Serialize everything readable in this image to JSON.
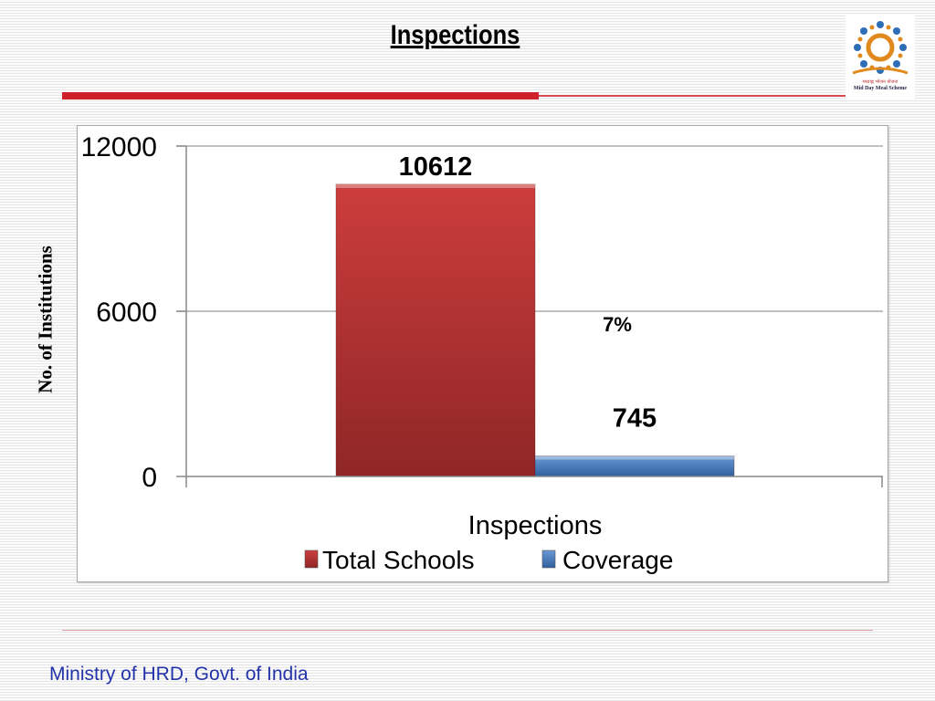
{
  "slide": {
    "title": "Inspections",
    "footer": "Ministry of HRD, Govt. of India",
    "logo": {
      "hindi": "मध्याह्न भोजन योजना",
      "english": "Mid Day Meal Scheme"
    }
  },
  "colors": {
    "total_schools": "#c0393a",
    "coverage": "#4a7fc1",
    "title_rule": "#d0202a",
    "footer_text": "#2233aa"
  },
  "chart_data": {
    "type": "bar",
    "title": "",
    "xlabel": "Inspections",
    "ylabel": "No. of Institutions",
    "ylim": [
      0,
      12000
    ],
    "yticks": [
      0,
      6000,
      12000
    ],
    "grid": true,
    "legend_position": "bottom",
    "categories": [
      "Inspections"
    ],
    "series": [
      {
        "name": "Total Schools",
        "values": [
          10612
        ],
        "data_label": "10612",
        "color": "#c0393a"
      },
      {
        "name": "Coverage",
        "values": [
          745
        ],
        "data_label": "745",
        "color": "#4a7fc1"
      }
    ],
    "annotations": [
      {
        "text": "7%"
      }
    ]
  }
}
